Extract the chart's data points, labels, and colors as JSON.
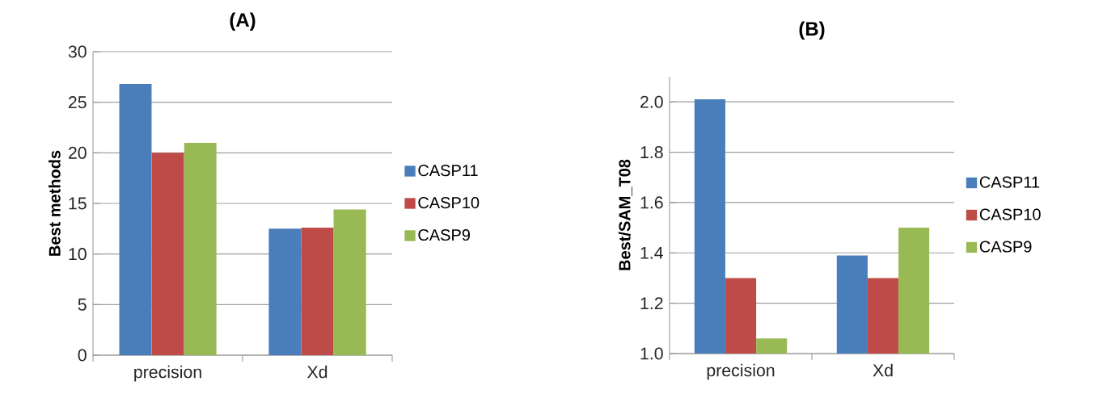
{
  "chart_data": [
    {
      "type": "bar",
      "title": "(A)",
      "ylabel": "Best methods",
      "categories": [
        "precision",
        "Xd"
      ],
      "series": [
        {
          "name": "CASP11",
          "color": "#4a7ebb",
          "values": [
            26.8,
            12.5
          ]
        },
        {
          "name": "CASP10",
          "color": "#be4b48",
          "values": [
            20.0,
            12.6
          ]
        },
        {
          "name": "CASP9",
          "color": "#98b954",
          "values": [
            21.0,
            14.4
          ]
        }
      ],
      "ylim": [
        0,
        30
      ],
      "yticks": [
        0,
        5,
        10,
        15,
        20,
        25,
        30
      ],
      "grid": "y",
      "legend": "right"
    },
    {
      "type": "bar",
      "title": "(B)",
      "ylabel": "Best/SAM_T08",
      "categories": [
        "precision",
        "Xd"
      ],
      "series": [
        {
          "name": "CASP11",
          "color": "#4a7ebb",
          "values": [
            2.01,
            1.39
          ]
        },
        {
          "name": "CASP10",
          "color": "#be4b48",
          "values": [
            1.3,
            1.3
          ]
        },
        {
          "name": "CASP9",
          "color": "#98b954",
          "values": [
            1.06,
            1.5
          ]
        }
      ],
      "ylim": [
        1.0,
        2.1
      ],
      "yticks": [
        {
          "value": 1.0,
          "label": "1.0"
        },
        1.2,
        1.4,
        1.6,
        1.8,
        {
          "value": 2.0,
          "label": "2.0"
        }
      ],
      "grid": "y",
      "legend": "right"
    }
  ]
}
